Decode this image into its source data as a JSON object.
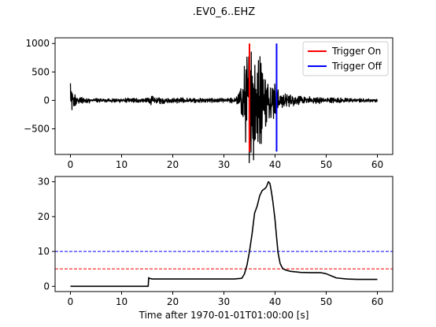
{
  "chart_data": [
    {
      "type": "line",
      "title": ".EV0_6..EHZ",
      "xlabel": "",
      "ylabel": "",
      "xlim": [
        -3,
        63
      ],
      "ylim": [
        -950,
        1100
      ],
      "xticks": [
        0,
        10,
        20,
        30,
        40,
        50,
        60
      ],
      "xtick_labels": [
        "0",
        "10",
        "20",
        "30",
        "40",
        "50",
        "60"
      ],
      "yticks": [
        1000,
        500,
        0,
        -500
      ],
      "ytick_labels": [
        "1000",
        "500",
        "0",
        "−500"
      ],
      "legend": {
        "position": "top-right",
        "entries": [
          {
            "label": "Trigger On",
            "color": "#ff0000"
          },
          {
            "label": "Trigger Off",
            "color": "#0000ff"
          }
        ]
      },
      "series": [
        {
          "color": "#000000",
          "waveform_envelope": [
            [
              0.0,
              300
            ],
            [
              0.3,
              160
            ],
            [
              0.6,
              100
            ],
            [
              1.0,
              90
            ],
            [
              1.5,
              70
            ],
            [
              2.0,
              50
            ],
            [
              3.0,
              40
            ],
            [
              5.0,
              30
            ],
            [
              10.0,
              30
            ],
            [
              15.0,
              35
            ],
            [
              15.5,
              60
            ],
            [
              20.0,
              40
            ],
            [
              25.0,
              30
            ],
            [
              30.0,
              30
            ],
            [
              32.0,
              40
            ],
            [
              33.0,
              120
            ],
            [
              33.5,
              300
            ],
            [
              34.0,
              500
            ],
            [
              34.5,
              700
            ],
            [
              35.0,
              900
            ],
            [
              35.5,
              950
            ],
            [
              36.0,
              800
            ],
            [
              36.5,
              750
            ],
            [
              37.0,
              700
            ],
            [
              37.5,
              600
            ],
            [
              38.0,
              500
            ],
            [
              38.5,
              350
            ],
            [
              39.0,
              250
            ],
            [
              39.5,
              250
            ],
            [
              40.0,
              300
            ],
            [
              40.5,
              200
            ],
            [
              41.0,
              150
            ],
            [
              42.0,
              100
            ],
            [
              43.0,
              80
            ],
            [
              45.0,
              60
            ],
            [
              50.0,
              40
            ],
            [
              55.0,
              30
            ],
            [
              60.0,
              20
            ]
          ]
        }
      ],
      "vertical_lines": [
        {
          "name": "Trigger On",
          "x": 35.0,
          "ymin": -900,
          "ymax": 1000,
          "color": "#ff0000"
        },
        {
          "name": "Trigger Off",
          "x": 40.3,
          "ymin": -900,
          "ymax": 1000,
          "color": "#0000ff"
        }
      ]
    },
    {
      "type": "line",
      "title": "",
      "xlabel": "Time after 1970-01-01T01:00:00 [s]",
      "ylabel": "",
      "xlim": [
        -3,
        63
      ],
      "ylim": [
        -1.5,
        31.5
      ],
      "xticks": [
        0,
        10,
        20,
        30,
        40,
        50,
        60
      ],
      "xtick_labels": [
        "0",
        "10",
        "20",
        "30",
        "40",
        "50",
        "60"
      ],
      "yticks": [
        0,
        10,
        20,
        30
      ],
      "ytick_labels": [
        "0",
        "10",
        "20",
        "30"
      ],
      "series": [
        {
          "color": "#000000",
          "x": [
            0,
            15.2,
            15.3,
            15.4,
            16.0,
            20,
            25,
            30,
            32,
            33.5,
            34.0,
            34.5,
            35.0,
            35.5,
            36.0,
            36.5,
            37.0,
            37.5,
            38.0,
            38.3,
            38.7,
            39.0,
            39.3,
            39.6,
            40.0,
            40.3,
            40.6,
            41.0,
            41.5,
            42,
            43,
            45,
            47,
            49,
            50,
            51,
            52,
            54,
            56,
            58,
            60
          ],
          "values": [
            0,
            0,
            2.5,
            2.3,
            2.1,
            2.1,
            2.1,
            2.1,
            2.1,
            2.3,
            3.5,
            6,
            10,
            15,
            21,
            23,
            26,
            27.5,
            28,
            28.5,
            30,
            29.5,
            27,
            24,
            19,
            14,
            9.5,
            6.5,
            5.1,
            4.7,
            4.3,
            4.0,
            3.9,
            3.9,
            3.6,
            3.0,
            2.4,
            2.1,
            2.0,
            2.0,
            2.0
          ]
        }
      ],
      "horizontal_lines": [
        {
          "name": "threshold-on",
          "y": 10,
          "color": "#0000ff",
          "style": "dashed"
        },
        {
          "name": "threshold-off",
          "y": 5,
          "color": "#ff0000",
          "style": "dashed"
        }
      ]
    }
  ]
}
